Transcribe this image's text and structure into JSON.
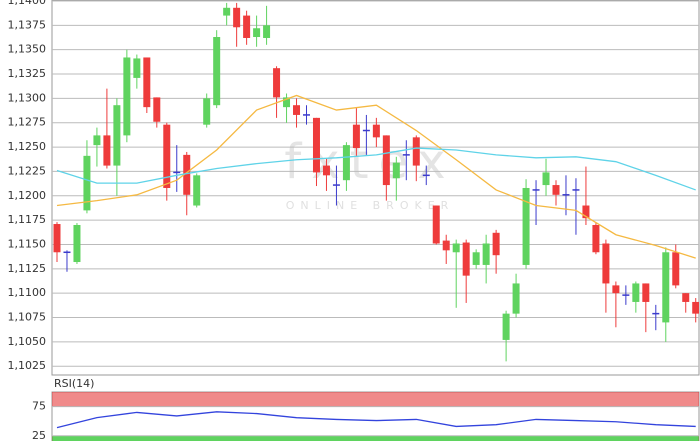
{
  "chart_data": [
    {
      "type": "candlestick",
      "watermark": "fxtex",
      "watermark_subtitle": "ONLINE BROKER",
      "up_color": "#5fd35f",
      "down_color": "#ee3b3b",
      "doji_color": "#3b3bcc",
      "ylim": [
        1.1016,
        1.1401
      ],
      "yticks": [
        {
          "value": 1.1025,
          "label": "1,1025"
        },
        {
          "value": 1.105,
          "label": "1,1050"
        },
        {
          "value": 1.1075,
          "label": "1,1075"
        },
        {
          "value": 1.11,
          "label": "1,1100"
        },
        {
          "value": 1.1125,
          "label": "1,1125"
        },
        {
          "value": 1.115,
          "label": "1,1150"
        },
        {
          "value": 1.1175,
          "label": "1,1175"
        },
        {
          "value": 1.12,
          "label": "1,1200"
        },
        {
          "value": 1.1225,
          "label": "1,1225"
        },
        {
          "value": 1.125,
          "label": "1,1250"
        },
        {
          "value": 1.1275,
          "label": "1,1275"
        },
        {
          "value": 1.13,
          "label": "1,1300"
        },
        {
          "value": 1.1325,
          "label": "1,1325"
        },
        {
          "value": 1.135,
          "label": "1,1350"
        },
        {
          "value": 1.1375,
          "label": "1,1375"
        },
        {
          "value": 1.14,
          "label": "1,1400"
        }
      ],
      "grid": true,
      "open": [
        1.1171,
        1.1142,
        1.1132,
        1.1185,
        1.1252,
        1.1262,
        1.1231,
        1.1262,
        1.1321,
        1.1342,
        1.1301,
        1.1273,
        1.1224,
        1.1242,
        1.119,
        1.1273,
        1.1293,
        1.1385,
        1.1393,
        1.1385,
        1.1363,
        1.1362,
        1.1331,
        1.1291,
        1.1293,
        1.1283,
        1.128,
        1.1231,
        1.1211,
        1.1216,
        1.1273,
        1.1267,
        1.1273,
        1.1262,
        1.1218,
        1.1242,
        1.126,
        1.1221,
        1.119,
        1.1154,
        1.1142,
        1.1152,
        1.1129,
        1.1129,
        1.1162,
        1.1052,
        1.1079,
        1.1129,
        1.1206,
        1.1211,
        1.1211,
        1.1201,
        1.1206,
        1.119,
        1.117,
        1.1151,
        1.1108,
        1.1098,
        1.1091,
        1.111,
        1.1079,
        1.107,
        1.1142,
        1.11,
        1.1091
      ],
      "high": [
        1.1173,
        1.1144,
        1.1172,
        1.1257,
        1.127,
        1.131,
        1.13,
        1.135,
        1.1345,
        1.1342,
        1.1301,
        1.1275,
        1.1252,
        1.1245,
        1.1223,
        1.1305,
        1.137,
        1.1398,
        1.1398,
        1.139,
        1.1385,
        1.1395,
        1.1333,
        1.1305,
        1.13,
        1.1293,
        1.128,
        1.1238,
        1.1231,
        1.1255,
        1.129,
        1.1283,
        1.128,
        1.1262,
        1.124,
        1.1257,
        1.1262,
        1.1231,
        1.119,
        1.116,
        1.1155,
        1.1155,
        1.1145,
        1.116,
        1.1165,
        1.1082,
        1.112,
        1.1217,
        1.1216,
        1.1238,
        1.1216,
        1.1221,
        1.1218,
        1.123,
        1.1172,
        1.1155,
        1.1112,
        1.1108,
        1.1112,
        1.111,
        1.1088,
        1.1147,
        1.115,
        1.11,
        1.1095
      ],
      "low": [
        1.1132,
        1.1122,
        1.113,
        1.1182,
        1.123,
        1.1228,
        1.12,
        1.1255,
        1.131,
        1.1285,
        1.127,
        1.1195,
        1.1204,
        1.118,
        1.1188,
        1.127,
        1.129,
        1.1375,
        1.1353,
        1.1355,
        1.1353,
        1.1355,
        1.128,
        1.1275,
        1.127,
        1.1273,
        1.121,
        1.1205,
        1.119,
        1.1205,
        1.124,
        1.1242,
        1.125,
        1.1195,
        1.1195,
        1.1216,
        1.1215,
        1.1211,
        1.115,
        1.113,
        1.1085,
        1.109,
        1.1125,
        1.111,
        1.112,
        1.103,
        1.1075,
        1.1125,
        1.117,
        1.12,
        1.119,
        1.118,
        1.116,
        1.117,
        1.114,
        1.108,
        1.1065,
        1.1088,
        1.108,
        1.106,
        1.1062,
        1.105,
        1.1105,
        1.108,
        1.107
      ],
      "close": [
        1.1142,
        1.1142,
        1.117,
        1.1241,
        1.1262,
        1.1231,
        1.1293,
        1.1342,
        1.1341,
        1.1291,
        1.1276,
        1.1208,
        1.1224,
        1.1201,
        1.1221,
        1.13,
        1.1363,
        1.1393,
        1.1373,
        1.1362,
        1.1372,
        1.1375,
        1.1301,
        1.1301,
        1.1283,
        1.1283,
        1.1224,
        1.1221,
        1.1211,
        1.1252,
        1.1249,
        1.1267,
        1.126,
        1.1211,
        1.1234,
        1.1242,
        1.1231,
        1.1221,
        1.1151,
        1.1144,
        1.1151,
        1.1118,
        1.1142,
        1.1151,
        1.1139,
        1.1079,
        1.111,
        1.1208,
        1.1206,
        1.1224,
        1.1201,
        1.1201,
        1.1206,
        1.1177,
        1.1142,
        1.111,
        1.11,
        1.1098,
        1.111,
        1.1091,
        1.1079,
        1.1142,
        1.1108,
        1.1091,
        1.1079
      ],
      "series": [
        {
          "color": "#f5b942",
          "x": [
            0,
            4,
            8,
            12,
            16,
            20,
            24,
            28,
            32,
            36,
            40,
            44,
            48,
            52,
            56,
            60,
            64
          ],
          "values": [
            1.119,
            1.1195,
            1.1201,
            1.1216,
            1.1247,
            1.1288,
            1.1303,
            1.1288,
            1.1293,
            1.1267,
            1.1237,
            1.1206,
            1.119,
            1.1185,
            1.116,
            1.1149,
            1.1136
          ]
        },
        {
          "color": "#5fd3e8",
          "x": [
            0,
            4,
            8,
            12,
            16,
            20,
            24,
            28,
            32,
            36,
            40,
            44,
            48,
            52,
            56,
            60,
            64
          ],
          "values": [
            1.1226,
            1.1213,
            1.1213,
            1.1221,
            1.1228,
            1.1233,
            1.1237,
            1.1239,
            1.1242,
            1.1249,
            1.1247,
            1.1242,
            1.1239,
            1.124,
            1.1235,
            1.1221,
            1.1206
          ]
        }
      ]
    },
    {
      "type": "line",
      "title": "RSI(14)",
      "ylim": [
        16,
        100
      ],
      "yticks": [
        25,
        75
      ],
      "bands": [
        {
          "from": 75,
          "to": 100,
          "color": "#f08a8a"
        },
        {
          "from": 0,
          "to": 25,
          "color": "#5fd35f"
        }
      ],
      "series": [
        {
          "color": "#3344dd",
          "x": [
            0,
            4,
            8,
            12,
            16,
            20,
            24,
            28,
            32,
            36,
            40,
            44,
            48,
            52,
            56,
            60,
            64
          ],
          "values": [
            39,
            56,
            65,
            59,
            66,
            63,
            56,
            53,
            51,
            53,
            41,
            44,
            53,
            51,
            49,
            44,
            41
          ]
        }
      ]
    }
  ]
}
